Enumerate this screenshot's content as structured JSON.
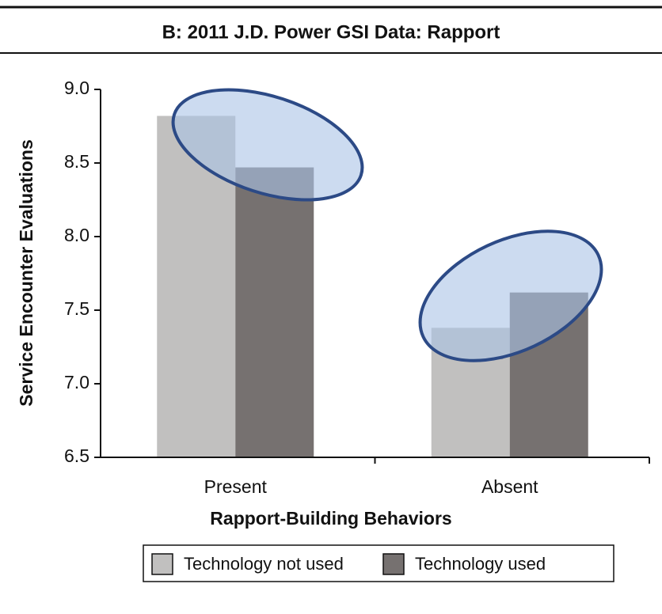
{
  "chart_data": {
    "type": "bar",
    "title": "B: 2011 J.D. Power GSI Data: Rapport",
    "x_label": "Rapport-Building Behaviors",
    "y_label": "Service Encounter Evaluations",
    "categories": [
      "Present",
      "Absent"
    ],
    "series": [
      {
        "name": "Technology not used",
        "color": "#c1c0bf",
        "values": [
          8.82,
          7.38
        ]
      },
      {
        "name": "Technology used",
        "color": "#767170",
        "values": [
          8.47,
          7.62
        ]
      }
    ],
    "ylim": [
      6.5,
      9.0
    ],
    "yticks": [
      6.5,
      {
        "value": 7.0,
        "label": "7.0"
      },
      7.5,
      {
        "value": 8.0,
        "label": "8.0"
      },
      8.5,
      {
        "value": 9.0,
        "label": "9.0"
      }
    ],
    "legend": "bottom"
  }
}
